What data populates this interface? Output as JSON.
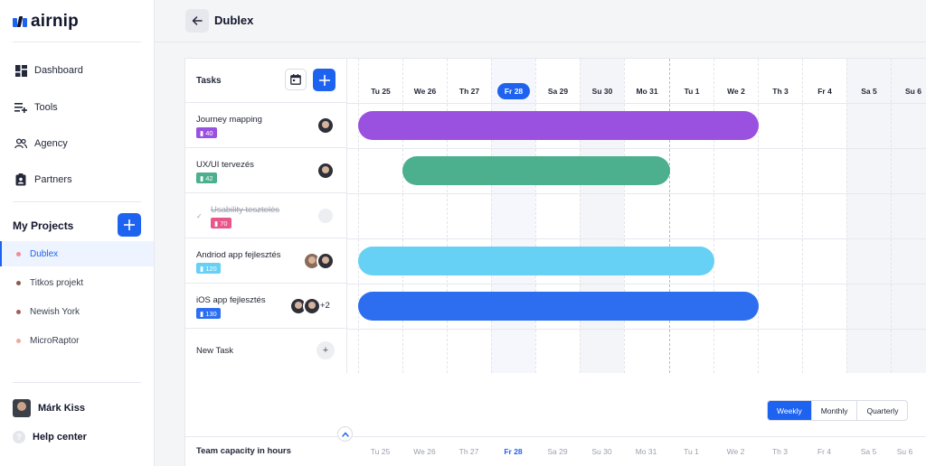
{
  "app": {
    "name": "airnip"
  },
  "nav": [
    {
      "label": "Dashboard",
      "icon": "dashboard-icon"
    },
    {
      "label": "Tools",
      "icon": "tools-icon"
    },
    {
      "label": "Agency",
      "icon": "agency-icon"
    },
    {
      "label": "Partners",
      "icon": "partners-icon"
    }
  ],
  "projects": {
    "title": "My Projects",
    "items": [
      {
        "label": "Dublex",
        "color": "#f08a9a",
        "active": true
      },
      {
        "label": "Titkos projekt",
        "color": "#8a5a4a"
      },
      {
        "label": "Newish York",
        "color": "#a0605a"
      },
      {
        "label": "MicroRaptor",
        "color": "#f0a8a0"
      }
    ]
  },
  "user": {
    "name": "Márk Kiss"
  },
  "help": {
    "label": "Help center"
  },
  "header": {
    "title": "Dublex"
  },
  "board": {
    "tasks_label": "Tasks",
    "days": [
      "Tu 25",
      "We 26",
      "Th 27",
      "Fr 28",
      "Sa 29",
      "Su 30",
      "Mo 31",
      "Tu 1",
      "We 2",
      "Th 3",
      "Fr 4",
      "Sa 5",
      "Su 6"
    ],
    "today": "Fr 28",
    "tasks": [
      {
        "name": "Journey mapping",
        "badge": "40",
        "color": "#9b51e0",
        "done": false
      },
      {
        "name": "UX/UI tervezés",
        "badge": "42",
        "color": "#4caf8e",
        "done": false
      },
      {
        "name": "Usability tesztelés",
        "badge": "70",
        "color": "#e8578a",
        "done": true
      },
      {
        "name": "Andriod app fejlesztés",
        "badge": "120",
        "color": "#66d1f5",
        "done": false
      },
      {
        "name": "iOS app fejlesztés",
        "badge": "130",
        "color": "#2d6ef0",
        "done": false,
        "extra": "+2"
      }
    ],
    "new_task_label": "New Task"
  },
  "zoom": {
    "options": [
      "Weekly",
      "Monthly",
      "Quarterly"
    ],
    "selected": "Weekly"
  },
  "capacity": {
    "label": "Team capacity in hours"
  }
}
